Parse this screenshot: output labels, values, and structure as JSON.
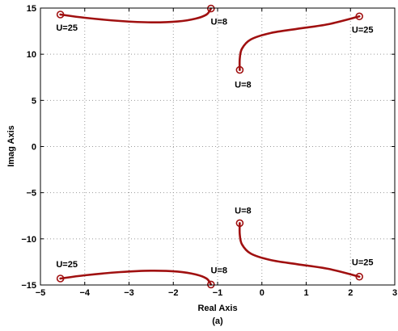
{
  "chart_data": {
    "type": "line",
    "title": "",
    "xlabel": "Real Axis",
    "ylabel": "Imag Axis",
    "caption": "(a)",
    "xlim": [
      -5,
      3
    ],
    "ylim": [
      -15,
      15
    ],
    "xticks": [
      -5,
      -4,
      -3,
      -2,
      -1,
      0,
      1,
      2,
      3
    ],
    "yticks": [
      -15,
      -10,
      -5,
      0,
      5,
      10,
      15
    ],
    "grid": true,
    "series_color": "#a01010",
    "series": [
      {
        "values": [
          [
            -4.55,
            14.3
          ],
          [
            -4.0,
            13.95
          ],
          [
            -3.2,
            13.6
          ],
          [
            -2.5,
            13.45
          ],
          [
            -1.9,
            13.55
          ],
          [
            -1.5,
            13.85
          ],
          [
            -1.25,
            14.3
          ],
          [
            -1.15,
            14.95
          ]
        ]
      },
      {
        "values": [
          [
            -4.55,
            -14.3
          ],
          [
            -4.0,
            -13.95
          ],
          [
            -3.2,
            -13.6
          ],
          [
            -2.5,
            -13.45
          ],
          [
            -1.9,
            -13.55
          ],
          [
            -1.5,
            -13.85
          ],
          [
            -1.25,
            -14.3
          ],
          [
            -1.15,
            -14.95
          ]
        ]
      },
      {
        "values": [
          [
            -0.5,
            8.3
          ],
          [
            -0.5,
            9.5
          ],
          [
            -0.45,
            10.6
          ],
          [
            -0.25,
            11.6
          ],
          [
            0.2,
            12.3
          ],
          [
            0.8,
            12.75
          ],
          [
            1.5,
            13.25
          ],
          [
            2.2,
            14.1
          ]
        ]
      },
      {
        "values": [
          [
            -0.5,
            -8.3
          ],
          [
            -0.5,
            -9.5
          ],
          [
            -0.45,
            -10.6
          ],
          [
            -0.25,
            -11.6
          ],
          [
            0.2,
            -12.3
          ],
          [
            0.8,
            -12.75
          ],
          [
            1.5,
            -13.25
          ],
          [
            2.2,
            -14.1
          ]
        ]
      }
    ],
    "markers": [
      [
        -4.55,
        14.3
      ],
      [
        -1.15,
        14.95
      ],
      [
        -0.5,
        8.3
      ],
      [
        2.2,
        14.1
      ],
      [
        -4.55,
        -14.3
      ],
      [
        -1.15,
        -14.95
      ],
      [
        -0.5,
        -8.3
      ],
      [
        2.2,
        -14.1
      ]
    ],
    "annotations": [
      {
        "text": "U=25",
        "x": -4.55,
        "y": 14.3
      },
      {
        "text": "U=8",
        "x": -1.15,
        "y": 14.95
      },
      {
        "text": "U=25",
        "x": 2.2,
        "y": 14.1
      },
      {
        "text": "U=8",
        "x": -0.5,
        "y": 8.3
      },
      {
        "text": "U=8",
        "x": -0.5,
        "y": -8.3
      },
      {
        "text": "U=25",
        "x": -4.55,
        "y": -14.3
      },
      {
        "text": "U=8",
        "x": -1.15,
        "y": -14.95
      },
      {
        "text": "U=25",
        "x": 2.2,
        "y": -14.1
      }
    ]
  }
}
